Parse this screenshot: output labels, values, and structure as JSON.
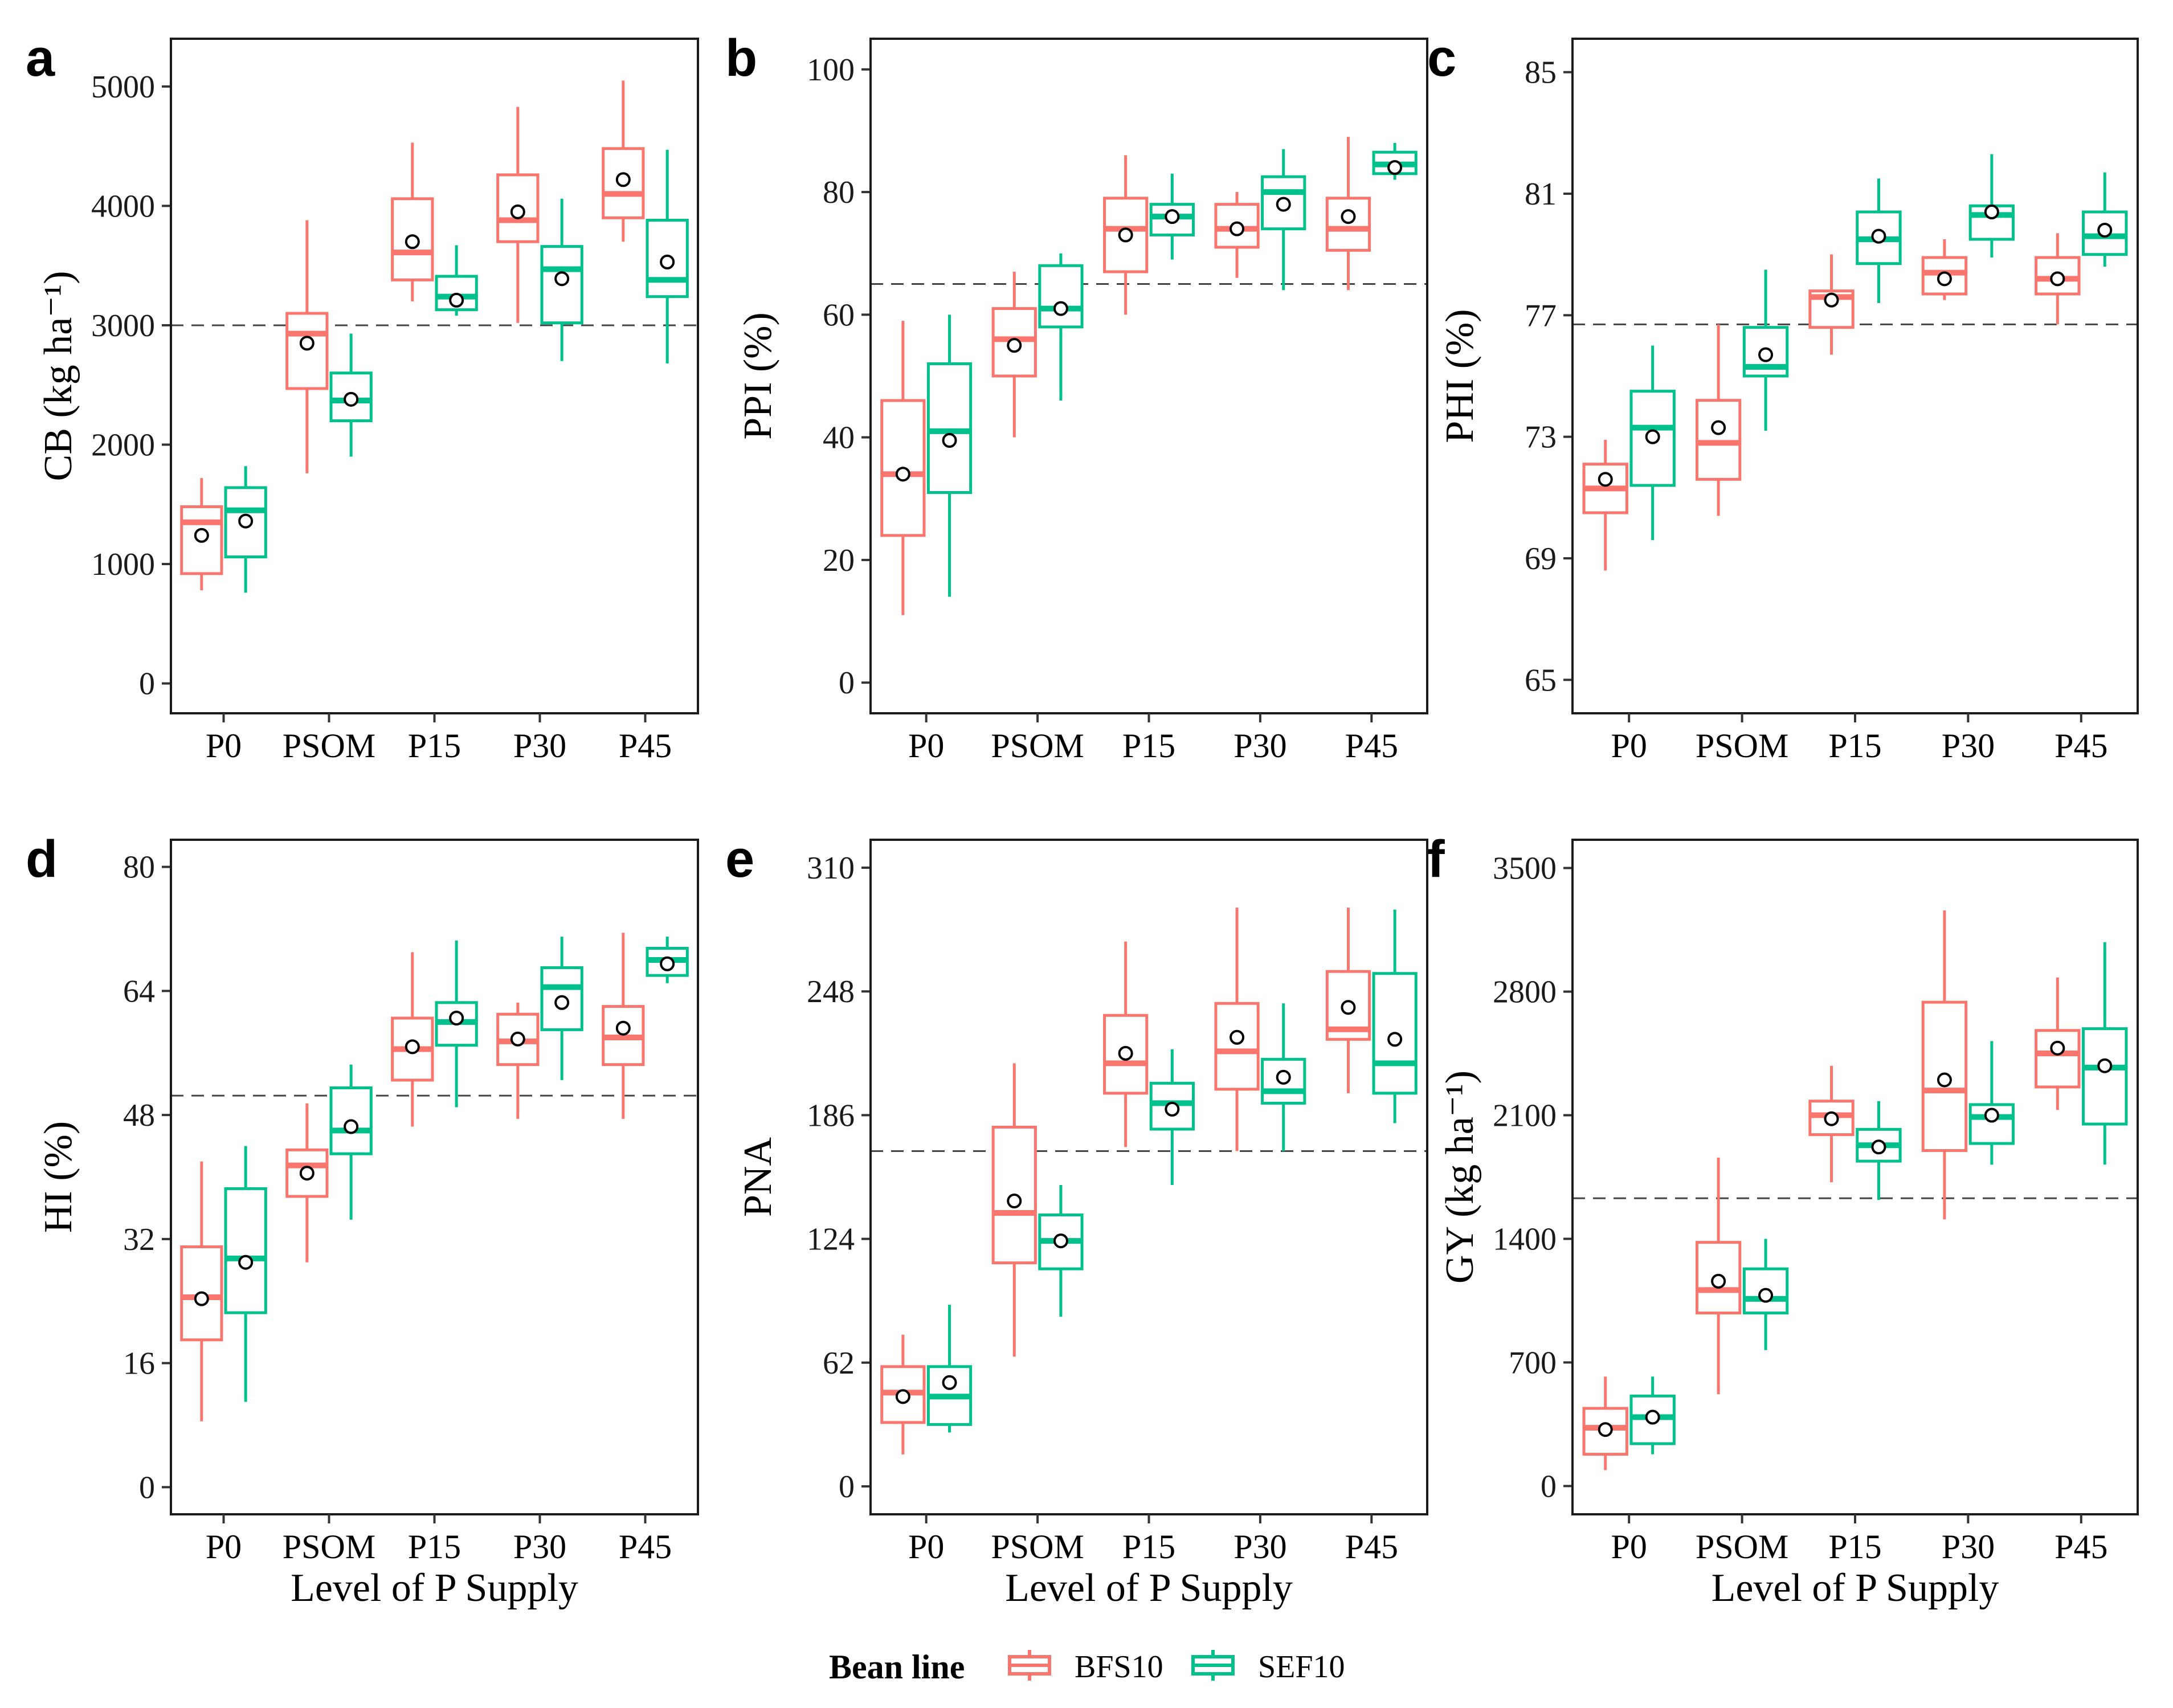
{
  "colors": {
    "BFS10": "#f8766d",
    "SEF10": "#00c08b"
  },
  "legend": {
    "title": "Bean line",
    "entries": [
      "BFS10",
      "SEF10"
    ]
  },
  "shared_xlabel": "Level of P Supply",
  "chart_data": [
    {
      "id": "a",
      "letter": "a",
      "type": "boxplot",
      "ylabel": "CB (kg ha⁻¹)",
      "ylim": [
        -250,
        5400
      ],
      "yticks": [
        0,
        1000,
        2000,
        3000,
        4000,
        5000
      ],
      "ytick_labels": [
        "0",
        "1000",
        "2000",
        "3000",
        "4000",
        "5000"
      ],
      "reference_line": 3000,
      "categories": [
        "P0",
        "PSOM",
        "P15",
        "P30",
        "P45"
      ],
      "series": [
        {
          "name": "BFS10",
          "boxes": [
            {
              "min": 780,
              "q1": 920,
              "median": 1350,
              "q3": 1480,
              "max": 1720,
              "mean": 1240
            },
            {
              "min": 1760,
              "q1": 2470,
              "median": 2930,
              "q3": 3100,
              "max": 3880,
              "mean": 2850
            },
            {
              "min": 3200,
              "q1": 3380,
              "median": 3610,
              "q3": 4060,
              "max": 4530,
              "mean": 3700
            },
            {
              "min": 3020,
              "q1": 3700,
              "median": 3880,
              "q3": 4260,
              "max": 4830,
              "mean": 3950
            },
            {
              "min": 3700,
              "q1": 3900,
              "median": 4100,
              "q3": 4480,
              "max": 5050,
              "mean": 4220
            }
          ]
        },
        {
          "name": "SEF10",
          "boxes": [
            {
              "min": 760,
              "q1": 1060,
              "median": 1450,
              "q3": 1640,
              "max": 1820,
              "mean": 1360
            },
            {
              "min": 1900,
              "q1": 2200,
              "median": 2370,
              "q3": 2600,
              "max": 2930,
              "mean": 2380
            },
            {
              "min": 3080,
              "q1": 3130,
              "median": 3240,
              "q3": 3410,
              "max": 3670,
              "mean": 3210
            },
            {
              "min": 2700,
              "q1": 3020,
              "median": 3470,
              "q3": 3660,
              "max": 4060,
              "mean": 3390
            },
            {
              "min": 2680,
              "q1": 3240,
              "median": 3380,
              "q3": 3880,
              "max": 4470,
              "mean": 3530
            }
          ]
        }
      ]
    },
    {
      "id": "b",
      "letter": "b",
      "type": "boxplot",
      "ylabel": "PPI (%)",
      "ylim": [
        -5,
        105
      ],
      "yticks": [
        0,
        20,
        40,
        60,
        80,
        100
      ],
      "ytick_labels": [
        "0",
        "20",
        "40",
        "60",
        "80",
        "100"
      ],
      "reference_line": 65,
      "categories": [
        "P0",
        "PSOM",
        "P15",
        "P30",
        "P45"
      ],
      "series": [
        {
          "name": "BFS10",
          "boxes": [
            {
              "min": 11,
              "q1": 24,
              "median": 34,
              "q3": 46,
              "max": 59,
              "mean": 34
            },
            {
              "min": 40,
              "q1": 50,
              "median": 56,
              "q3": 61,
              "max": 67,
              "mean": 55
            },
            {
              "min": 60,
              "q1": 67,
              "median": 74,
              "q3": 79,
              "max": 86,
              "mean": 73
            },
            {
              "min": 66,
              "q1": 71,
              "median": 74,
              "q3": 78,
              "max": 80,
              "mean": 74
            },
            {
              "min": 64,
              "q1": 70.5,
              "median": 74,
              "q3": 79,
              "max": 89,
              "mean": 76
            }
          ]
        },
        {
          "name": "SEF10",
          "boxes": [
            {
              "min": 14,
              "q1": 31,
              "median": 41,
              "q3": 52,
              "max": 60,
              "mean": 39.5
            },
            {
              "min": 46,
              "q1": 58,
              "median": 61,
              "q3": 68,
              "max": 70,
              "mean": 61
            },
            {
              "min": 69,
              "q1": 73,
              "median": 76,
              "q3": 78,
              "max": 83,
              "mean": 76
            },
            {
              "min": 64,
              "q1": 74,
              "median": 80,
              "q3": 82.5,
              "max": 87,
              "mean": 78
            },
            {
              "min": 82,
              "q1": 83,
              "median": 84.5,
              "q3": 86.5,
              "max": 88,
              "mean": 84
            }
          ]
        }
      ]
    },
    {
      "id": "c",
      "letter": "c",
      "type": "boxplot",
      "ylabel": "PHI (%)",
      "ylim": [
        63.9,
        86.1
      ],
      "yticks": [
        65,
        69,
        73,
        77,
        81,
        85
      ],
      "ytick_labels": [
        "65",
        "69",
        "73",
        "77",
        "81",
        "85"
      ],
      "reference_line": 76.7,
      "categories": [
        "P0",
        "PSOM",
        "P15",
        "P30",
        "P45"
      ],
      "series": [
        {
          "name": "BFS10",
          "boxes": [
            {
              "min": 68.6,
              "q1": 70.5,
              "median": 71.3,
              "q3": 72.1,
              "max": 72.9,
              "mean": 71.6
            },
            {
              "min": 70.4,
              "q1": 71.6,
              "median": 72.8,
              "q3": 74.2,
              "max": 76.7,
              "mean": 73.3
            },
            {
              "min": 75.7,
              "q1": 76.6,
              "median": 77.6,
              "q3": 77.8,
              "max": 79.0,
              "mean": 77.5
            },
            {
              "min": 77.5,
              "q1": 77.7,
              "median": 78.4,
              "q3": 78.9,
              "max": 79.5,
              "mean": 78.2
            },
            {
              "min": 76.7,
              "q1": 77.7,
              "median": 78.2,
              "q3": 78.9,
              "max": 79.7,
              "mean": 78.2
            }
          ]
        },
        {
          "name": "SEF10",
          "boxes": [
            {
              "min": 69.6,
              "q1": 71.4,
              "median": 73.3,
              "q3": 74.5,
              "max": 76.0,
              "mean": 73.0
            },
            {
              "min": 73.2,
              "q1": 75.0,
              "median": 75.3,
              "q3": 76.6,
              "max": 78.5,
              "mean": 75.7
            },
            {
              "min": 77.4,
              "q1": 78.7,
              "median": 79.5,
              "q3": 80.4,
              "max": 81.5,
              "mean": 79.6
            },
            {
              "min": 78.9,
              "q1": 79.5,
              "median": 80.3,
              "q3": 80.6,
              "max": 82.3,
              "mean": 80.4
            },
            {
              "min": 78.6,
              "q1": 79.0,
              "median": 79.6,
              "q3": 80.4,
              "max": 81.7,
              "mean": 79.8
            }
          ]
        }
      ]
    },
    {
      "id": "d",
      "letter": "d",
      "type": "boxplot",
      "ylabel": "HI (%)",
      "ylim": [
        -3.5,
        83.5
      ],
      "yticks": [
        0,
        16,
        32,
        48,
        64,
        80
      ],
      "ytick_labels": [
        "0",
        "16",
        "32",
        "48",
        "64",
        "80"
      ],
      "reference_line": 50.5,
      "categories": [
        "P0",
        "PSOM",
        "P15",
        "P30",
        "P45"
      ],
      "series": [
        {
          "name": "BFS10",
          "boxes": [
            {
              "min": 8.5,
              "q1": 19,
              "median": 24.5,
              "q3": 31,
              "max": 42,
              "mean": 24.3
            },
            {
              "min": 29,
              "q1": 37.5,
              "median": 41.5,
              "q3": 43.5,
              "max": 49.5,
              "mean": 40.5
            },
            {
              "min": 46.5,
              "q1": 52.5,
              "median": 56.5,
              "q3": 60.5,
              "max": 69,
              "mean": 56.8
            },
            {
              "min": 47.5,
              "q1": 54.5,
              "median": 57.5,
              "q3": 61,
              "max": 62.5,
              "mean": 57.8
            },
            {
              "min": 47.5,
              "q1": 54.5,
              "median": 58,
              "q3": 62,
              "max": 71.5,
              "mean": 59.2
            }
          ]
        },
        {
          "name": "SEF10",
          "boxes": [
            {
              "min": 11,
              "q1": 22.5,
              "median": 29.5,
              "q3": 38.5,
              "max": 44,
              "mean": 29
            },
            {
              "min": 34.5,
              "q1": 43,
              "median": 46,
              "q3": 51.5,
              "max": 54.5,
              "mean": 46.5
            },
            {
              "min": 49,
              "q1": 57,
              "median": 60,
              "q3": 62.5,
              "max": 70.5,
              "mean": 60.5
            },
            {
              "min": 52.5,
              "q1": 59,
              "median": 64.5,
              "q3": 67,
              "max": 71,
              "mean": 62.5
            },
            {
              "min": 65,
              "q1": 66,
              "median": 68,
              "q3": 69.5,
              "max": 71,
              "mean": 67.5
            }
          ]
        }
      ]
    },
    {
      "id": "e",
      "letter": "e",
      "type": "boxplot",
      "ylabel": "PNA",
      "ylim": [
        -14,
        324
      ],
      "yticks": [
        0,
        62,
        124,
        186,
        248,
        310
      ],
      "ytick_labels": [
        "0",
        "62",
        "124",
        "186",
        "248",
        "310"
      ],
      "reference_line": 168,
      "categories": [
        "P0",
        "PSOM",
        "P15",
        "P30",
        "P45"
      ],
      "series": [
        {
          "name": "BFS10",
          "boxes": [
            {
              "min": 16,
              "q1": 32,
              "median": 47,
              "q3": 60,
              "max": 76,
              "mean": 45
            },
            {
              "min": 65,
              "q1": 112,
              "median": 137,
              "q3": 180,
              "max": 212,
              "mean": 143
            },
            {
              "min": 170,
              "q1": 197,
              "median": 212,
              "q3": 236,
              "max": 273,
              "mean": 217
            },
            {
              "min": 168,
              "q1": 199,
              "median": 218,
              "q3": 242,
              "max": 290,
              "mean": 225
            },
            {
              "min": 197,
              "q1": 224,
              "median": 229,
              "q3": 258,
              "max": 290,
              "mean": 240
            }
          ]
        },
        {
          "name": "SEF10",
          "boxes": [
            {
              "min": 27,
              "q1": 31,
              "median": 45,
              "q3": 60,
              "max": 91,
              "mean": 52
            },
            {
              "min": 85,
              "q1": 109,
              "median": 123,
              "q3": 136,
              "max": 151,
              "mean": 123
            },
            {
              "min": 151,
              "q1": 179,
              "median": 192,
              "q3": 202,
              "max": 219,
              "mean": 189
            },
            {
              "min": 168,
              "q1": 192,
              "median": 198,
              "q3": 214,
              "max": 242,
              "mean": 205
            },
            {
              "min": 182,
              "q1": 197,
              "median": 212,
              "q3": 257,
              "max": 289,
              "mean": 224
            }
          ]
        }
      ]
    },
    {
      "id": "f",
      "letter": "f",
      "type": "boxplot",
      "ylabel": "GY (kg ha⁻¹)",
      "ylim": [
        -160,
        3660
      ],
      "yticks": [
        0,
        700,
        1400,
        2100,
        2800,
        3500
      ],
      "ytick_labels": [
        "0",
        "700",
        "1400",
        "2100",
        "2800",
        "3500"
      ],
      "reference_line": 1630,
      "categories": [
        "P0",
        "PSOM",
        "P15",
        "P30",
        "P45"
      ],
      "series": [
        {
          "name": "BFS10",
          "boxes": [
            {
              "min": 90,
              "q1": 180,
              "median": 330,
              "q3": 440,
              "max": 620,
              "mean": 320
            },
            {
              "min": 520,
              "q1": 980,
              "median": 1110,
              "q3": 1380,
              "max": 1860,
              "mean": 1160
            },
            {
              "min": 1720,
              "q1": 1990,
              "median": 2100,
              "q3": 2180,
              "max": 2380,
              "mean": 2080
            },
            {
              "min": 1510,
              "q1": 1900,
              "median": 2240,
              "q3": 2740,
              "max": 3260,
              "mean": 2300
            },
            {
              "min": 2130,
              "q1": 2260,
              "median": 2450,
              "q3": 2580,
              "max": 2880,
              "mean": 2480
            }
          ]
        },
        {
          "name": "SEF10",
          "boxes": [
            {
              "min": 180,
              "q1": 240,
              "median": 390,
              "q3": 510,
              "max": 620,
              "mean": 390
            },
            {
              "min": 770,
              "q1": 980,
              "median": 1060,
              "q3": 1230,
              "max": 1400,
              "mean": 1080
            },
            {
              "min": 1620,
              "q1": 1840,
              "median": 1930,
              "q3": 2020,
              "max": 2180,
              "mean": 1920
            },
            {
              "min": 1820,
              "q1": 1940,
              "median": 2090,
              "q3": 2160,
              "max": 2520,
              "mean": 2100
            },
            {
              "min": 1820,
              "q1": 2050,
              "median": 2370,
              "q3": 2590,
              "max": 3080,
              "mean": 2380
            }
          ]
        }
      ]
    }
  ]
}
